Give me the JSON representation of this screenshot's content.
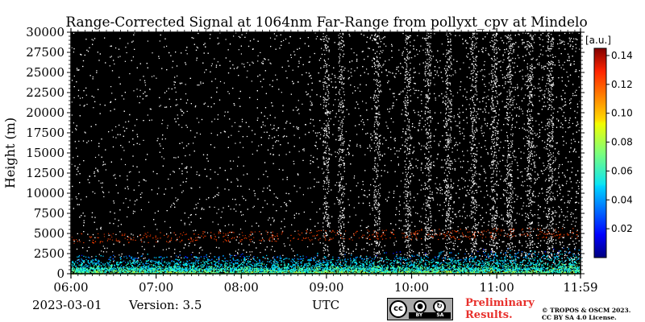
{
  "chart_data": {
    "type": "heatmap",
    "title": "Range-Corrected Signal at 1064nm Far-Range from pollyxt_cpv at Mindelo",
    "ylabel": "Height (m)",
    "xlabel": "UTC",
    "x_ticks": [
      "06:00",
      "07:00",
      "08:00",
      "09:00",
      "10:00",
      "11:00",
      "11:59"
    ],
    "y_ticks": [
      0,
      2500,
      5000,
      7500,
      10000,
      12500,
      15000,
      17500,
      20000,
      22500,
      25000,
      27500,
      30000
    ],
    "xlim": [
      "06:00",
      "11:59"
    ],
    "ylim": [
      0,
      30000
    ],
    "colorbar": {
      "label": "[a.u.]",
      "ticks": [
        0.02,
        0.04,
        0.06,
        0.08,
        0.1,
        0.12,
        0.14
      ],
      "tick_labels": [
        "0.02",
        "0.04",
        "0.06",
        "0.08",
        "0.10",
        "0.12",
        "0.14"
      ],
      "range": [
        0,
        0.145
      ],
      "colormap": "jet"
    },
    "background_color": "#000000",
    "noise_color": "#ffffff"
  },
  "footer": {
    "date": "2023-03-01",
    "version": "Version: 3.5",
    "preliminary_line1": "Preliminary",
    "preliminary_line2": "Results.",
    "copyright_line1": "© TROPOS & OSCM 2023.",
    "copyright_line2": "CC BY SA 4.0 License.",
    "badge_cc": "cc",
    "badge_by": "BY",
    "badge_sa": "SA"
  }
}
